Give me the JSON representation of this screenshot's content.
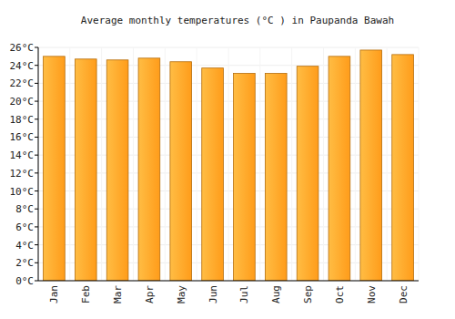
{
  "chart_data": {
    "type": "bar",
    "title": "Average monthly temperatures (°C ) in Paupanda Bawah",
    "categories": [
      "Jan",
      "Feb",
      "Mar",
      "Apr",
      "May",
      "Jun",
      "Jul",
      "Aug",
      "Sep",
      "Oct",
      "Nov",
      "Dec"
    ],
    "values": [
      25.0,
      24.7,
      24.6,
      24.8,
      24.4,
      23.7,
      23.1,
      23.1,
      23.9,
      25.0,
      25.7,
      25.2
    ],
    "color": "#ff9c1a",
    "ylim": [
      0,
      26
    ],
    "yticks": [
      {
        "value": 0,
        "label": "0°C"
      },
      {
        "value": 2,
        "label": "2°C"
      },
      {
        "value": 4,
        "label": "4°C"
      },
      {
        "value": 6,
        "label": "6°C"
      },
      {
        "value": 8,
        "label": "8°C"
      },
      {
        "value": 10,
        "label": "10°C"
      },
      {
        "value": 12,
        "label": "12°C"
      },
      {
        "value": 14,
        "label": "14°C"
      },
      {
        "value": 16,
        "label": "16°C"
      },
      {
        "value": 18,
        "label": "18°C"
      },
      {
        "value": 20,
        "label": "20°C"
      },
      {
        "value": 22,
        "label": "22°C"
      },
      {
        "value": 24,
        "label": "24°C"
      },
      {
        "value": 26,
        "label": "26°C"
      }
    ],
    "grid": true
  }
}
